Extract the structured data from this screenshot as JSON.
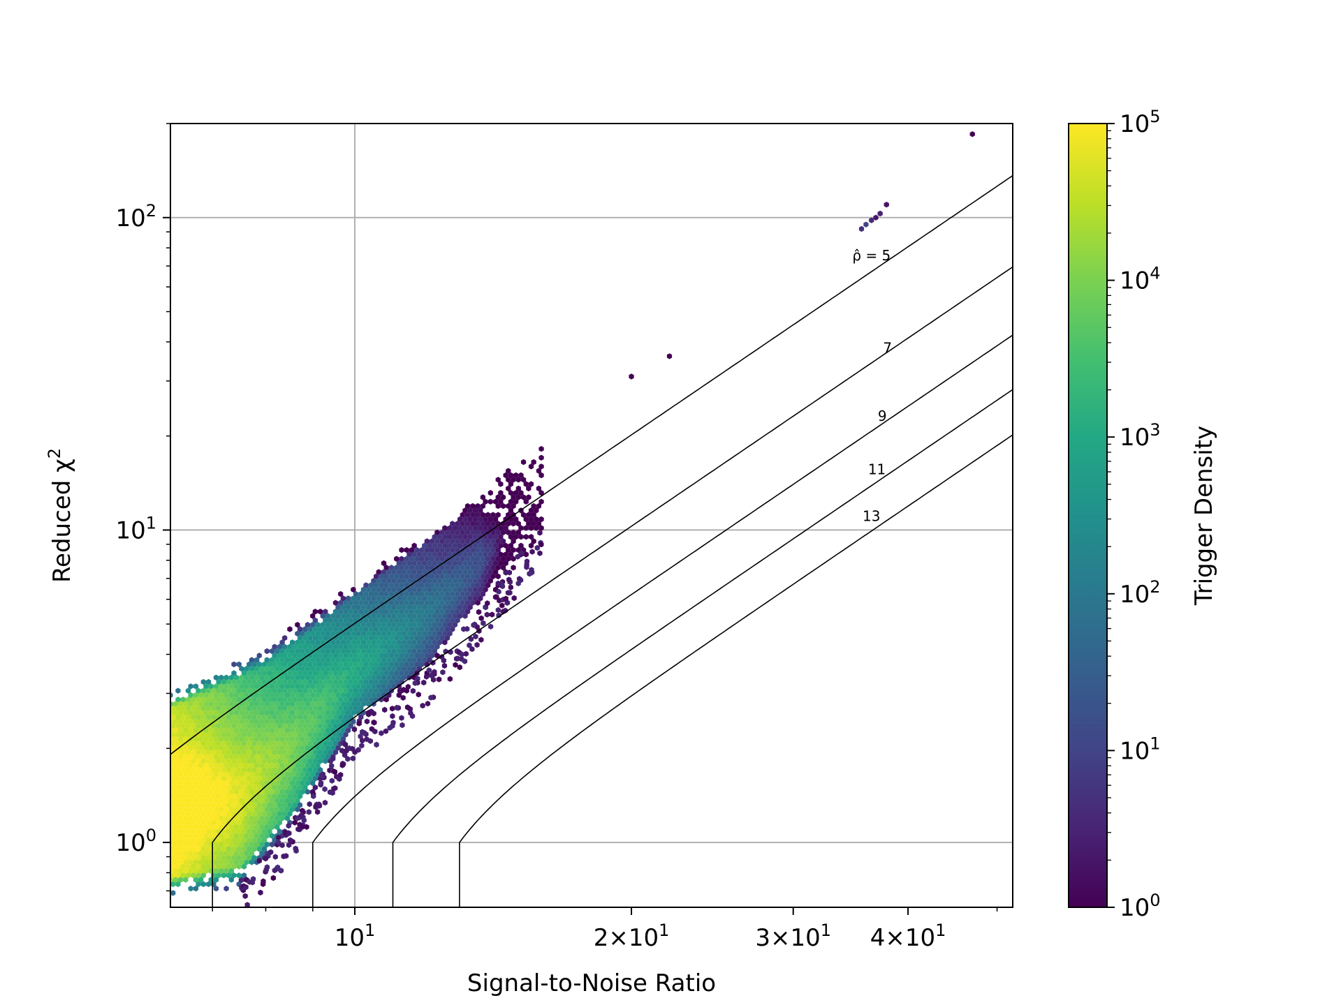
{
  "chart_data": {
    "type": "heatmap",
    "subtype": "hexbin-log-density",
    "xlabel": "Signal-to-Noise Ratio",
    "ylabel": "Reduced χ²",
    "colorbar_label": "Trigger Density",
    "xscale": "log",
    "yscale": "log",
    "xlim": [
      6.3,
      52
    ],
    "ylim": [
      0.62,
      200
    ],
    "grid": true,
    "x_ticks": [
      {
        "value": 10,
        "base": "10",
        "exp": "1"
      },
      {
        "value": 20,
        "coef": "2",
        "base": "10",
        "exp": "1"
      },
      {
        "value": 30,
        "coef": "3",
        "base": "10",
        "exp": "1"
      },
      {
        "value": 40,
        "coef": "4",
        "base": "10",
        "exp": "1"
      }
    ],
    "y_ticks": [
      {
        "value": 1,
        "base": "10",
        "exp": "0"
      },
      {
        "value": 10,
        "base": "10",
        "exp": "1"
      },
      {
        "value": 100,
        "base": "10",
        "exp": "2"
      }
    ],
    "colorbar": {
      "colormap": "viridis",
      "scale": "log",
      "range": [
        1,
        100000
      ],
      "ticks": [
        {
          "value": 1,
          "base": "10",
          "exp": "0"
        },
        {
          "value": 10,
          "base": "10",
          "exp": "1"
        },
        {
          "value": 100,
          "base": "10",
          "exp": "2"
        },
        {
          "value": 1000,
          "base": "10",
          "exp": "3"
        },
        {
          "value": 10000,
          "base": "10",
          "exp": "4"
        },
        {
          "value": 100000,
          "base": "10",
          "exp": "5"
        }
      ]
    },
    "contours": [
      {
        "rho": 5,
        "label": "ρ̂ = 5",
        "label_at": [
          36.5,
          75
        ]
      },
      {
        "rho": 7,
        "label": "7",
        "label_at": [
          38,
          38
        ]
      },
      {
        "rho": 9,
        "label": "9",
        "label_at": [
          37.5,
          23
        ]
      },
      {
        "rho": 11,
        "label": "11",
        "label_at": [
          37,
          15.5
        ]
      },
      {
        "rho": 13,
        "label": "13",
        "label_at": [
          36.5,
          11
        ]
      }
    ],
    "density_band": {
      "description": "dense band of triggers rising along the diagonal",
      "upper_edge": [
        [
          6.3,
          2.9
        ],
        [
          8,
          4.0
        ],
        [
          10,
          6.5
        ],
        [
          12,
          9.7
        ],
        [
          14,
          13.5
        ],
        [
          15,
          16
        ],
        [
          16.3,
          21
        ]
      ],
      "lower_edge": [
        [
          6.3,
          0.72
        ],
        [
          7.5,
          0.76
        ],
        [
          8.5,
          1.15
        ],
        [
          10,
          2.4
        ],
        [
          12,
          3.6
        ],
        [
          14,
          6.2
        ],
        [
          16,
          10.5
        ]
      ],
      "peak": [
        6.4,
        1.1
      ],
      "peak_density": 100000
    },
    "outliers": [
      {
        "x": 47,
        "y": 185,
        "density": 1
      },
      {
        "x": 22,
        "y": 36,
        "density": 1
      },
      {
        "x": 20,
        "y": 31,
        "density": 1
      },
      {
        "x": 35.6,
        "y": 92,
        "density": 5
      },
      {
        "x": 36.5,
        "y": 98,
        "density": 4
      },
      {
        "x": 37.3,
        "y": 103,
        "density": 3
      },
      {
        "x": 37.9,
        "y": 110,
        "density": 2
      },
      {
        "x": 36.0,
        "y": 95,
        "density": 10
      },
      {
        "x": 36.9,
        "y": 100,
        "density": 2
      }
    ]
  }
}
